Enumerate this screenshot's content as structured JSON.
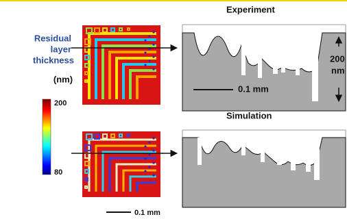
{
  "left_label": {
    "title_lines": [
      "Residual",
      "layer",
      "thickness"
    ],
    "unit": "(nm)"
  },
  "colorbar": {
    "max_label": "200",
    "min_label": "80"
  },
  "experiment": {
    "title": "Experiment",
    "scale_label": "0.1 mm",
    "height_label_lines": [
      "200",
      "nm"
    ]
  },
  "simulation": {
    "title": "Simulation"
  },
  "map_scale_label": "0.1 mm"
}
